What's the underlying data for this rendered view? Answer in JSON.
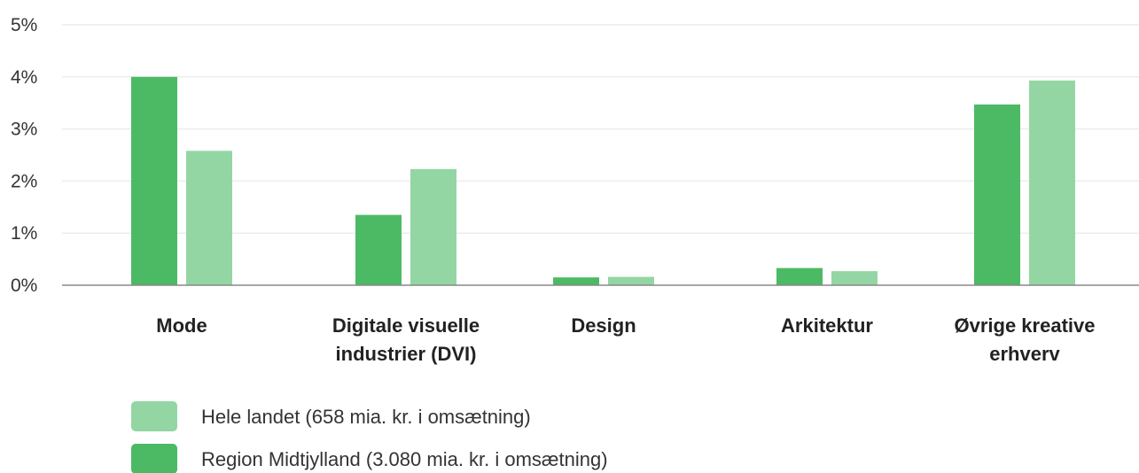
{
  "chart_data": {
    "type": "bar",
    "categories": [
      [
        "Mode"
      ],
      [
        "Digitale visuelle",
        "industrier (DVI)"
      ],
      [
        "Design"
      ],
      [
        "Arkitektur"
      ],
      [
        "Øvrige kreative",
        "erhverv"
      ]
    ],
    "series": [
      {
        "name": "Region Midtjylland (3.080 mia. kr. i omsætning)",
        "color": "#4cba64",
        "values": [
          4.0,
          1.35,
          0.15,
          0.33,
          3.47
        ]
      },
      {
        "name": "Hele landet (658 mia. kr. i omsætning)",
        "color": "#93d6a4",
        "values": [
          2.58,
          2.23,
          0.16,
          0.27,
          3.93
        ]
      }
    ],
    "legend_order": [
      1,
      0
    ],
    "ylim": [
      0,
      5
    ],
    "yticks": [
      0,
      1,
      2,
      3,
      4,
      5
    ],
    "ytick_labels": [
      "0%",
      "1%",
      "2%",
      "3%",
      "4%",
      "5%"
    ],
    "grid": true,
    "legend_position": "bottom-left"
  }
}
